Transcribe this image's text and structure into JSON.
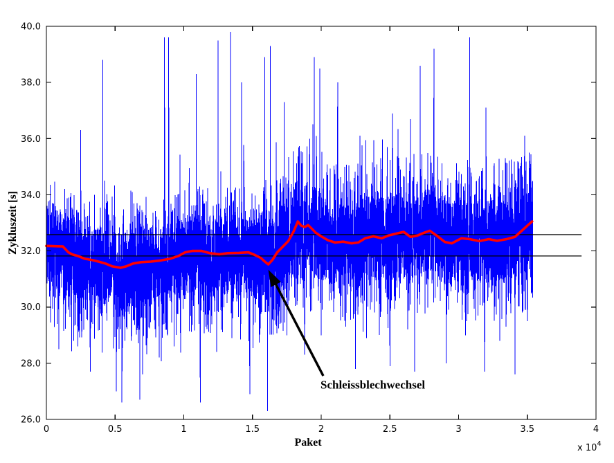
{
  "chart_data": {
    "type": "line",
    "title": "",
    "xlabel": "Paket",
    "ylabel": "Zykluszeit [s]",
    "x_exponent_label": "x 10",
    "x_exponent": "4",
    "xlim": [
      0,
      40000
    ],
    "ylim": [
      26.0,
      40.0
    ],
    "grid": false,
    "legend": "none",
    "background": "#ffffff",
    "axis_color": "#000000",
    "xticks": [
      {
        "v": 0,
        "label": "0"
      },
      {
        "v": 5000,
        "label": "0.5"
      },
      {
        "v": 10000,
        "label": "1"
      },
      {
        "v": 15000,
        "label": "1.5"
      },
      {
        "v": 20000,
        "label": "2"
      },
      {
        "v": 25000,
        "label": "2.5"
      },
      {
        "v": 30000,
        "label": "3"
      },
      {
        "v": 35000,
        "label": "3.5"
      },
      {
        "v": 40000,
        "label": "4"
      }
    ],
    "yticks": [
      {
        "v": 26,
        "label": "26.0"
      },
      {
        "v": 28,
        "label": "28.0"
      },
      {
        "v": 30,
        "label": "30.0"
      },
      {
        "v": 32,
        "label": "32.0"
      },
      {
        "v": 34,
        "label": "34.0"
      },
      {
        "v": 36,
        "label": "36.0"
      },
      {
        "v": 38,
        "label": "38.0"
      },
      {
        "v": 40,
        "label": "40.0"
      }
    ],
    "reference_lines": [
      {
        "y": 32.58,
        "x_start": 0,
        "x_end": 38950,
        "color": "#000000"
      },
      {
        "y": 31.82,
        "x_start": 0,
        "x_end": 38950,
        "color": "#000000"
      }
    ],
    "annotation": {
      "text": "Schleissblechwechsel",
      "target": {
        "x": 16150,
        "y": 31.33
      },
      "tail": {
        "x": 20150,
        "y": 27.55
      },
      "text_pos": {
        "x": 19950,
        "y": 27.1
      },
      "color": "#000000"
    },
    "series": [
      {
        "name": "cycle-time-raw",
        "color": "#0000ff",
        "style": "noisy-line",
        "x_start": 0,
        "x_end": 35400,
        "sample_step": 10,
        "seed": 1337,
        "noise_segments": [
          {
            "x_end": 15500,
            "up": 1.25,
            "dn": 1.55
          },
          {
            "x_end": 20000,
            "up": 1.6,
            "dn": 1.6
          },
          {
            "x_end": 35400,
            "up": 1.5,
            "dn": 1.55
          }
        ],
        "up_spikes": [
          [
            50,
            33.6
          ],
          [
            2500,
            36.3
          ],
          [
            4100,
            38.8
          ],
          [
            5500,
            35.6
          ],
          [
            8600,
            39.6
          ],
          [
            8900,
            39.6
          ],
          [
            10900,
            38.3
          ],
          [
            12500,
            39.5
          ],
          [
            13400,
            39.8
          ],
          [
            14200,
            38.0
          ],
          [
            15900,
            38.9
          ],
          [
            16300,
            39.3
          ],
          [
            17300,
            37.3
          ],
          [
            19500,
            38.9
          ],
          [
            19900,
            38.5
          ],
          [
            21200,
            38.0
          ],
          [
            23300,
            39.4
          ],
          [
            25200,
            36.9
          ],
          [
            26500,
            36.7
          ],
          [
            27200,
            38.6
          ],
          [
            28200,
            39.2
          ],
          [
            30800,
            39.6
          ],
          [
            32000,
            37.1
          ],
          [
            33400,
            35.3
          ],
          [
            34800,
            36.1
          ]
        ],
        "down_spikes": [
          [
            900,
            28.5
          ],
          [
            2000,
            28.8
          ],
          [
            3200,
            27.7
          ],
          [
            5100,
            27.0
          ],
          [
            5500,
            26.6
          ],
          [
            6800,
            26.7
          ],
          [
            7000,
            27.6
          ],
          [
            8200,
            28.2
          ],
          [
            9300,
            28.6
          ],
          [
            11200,
            26.6
          ],
          [
            12400,
            28.4
          ],
          [
            13500,
            28.9
          ],
          [
            14800,
            26.9
          ],
          [
            16100,
            26.3
          ],
          [
            17500,
            29.0
          ],
          [
            18800,
            28.3
          ],
          [
            20000,
            29.0
          ],
          [
            21800,
            29.3
          ],
          [
            22500,
            27.8
          ],
          [
            23300,
            28.9
          ],
          [
            25000,
            27.9
          ],
          [
            26300,
            29.2
          ],
          [
            26800,
            27.7
          ],
          [
            29100,
            28.0
          ],
          [
            30500,
            29.0
          ],
          [
            31900,
            27.7
          ],
          [
            33000,
            28.8
          ],
          [
            34100,
            27.6
          ],
          [
            35000,
            29.5
          ]
        ]
      },
      {
        "name": "moving-average",
        "color": "#ff0000",
        "style": "line",
        "points": [
          [
            0,
            32.18
          ],
          [
            1200,
            32.16
          ],
          [
            1600,
            31.95
          ],
          [
            1900,
            31.87
          ],
          [
            2300,
            31.82
          ],
          [
            2800,
            31.72
          ],
          [
            3300,
            31.68
          ],
          [
            3800,
            31.62
          ],
          [
            4300,
            31.55
          ],
          [
            4800,
            31.45
          ],
          [
            5400,
            31.4
          ],
          [
            5800,
            31.45
          ],
          [
            6300,
            31.55
          ],
          [
            6900,
            31.6
          ],
          [
            7600,
            31.62
          ],
          [
            8300,
            31.66
          ],
          [
            9000,
            31.72
          ],
          [
            9600,
            31.82
          ],
          [
            10100,
            31.95
          ],
          [
            10600,
            32.0
          ],
          [
            11300,
            32.0
          ],
          [
            11900,
            31.92
          ],
          [
            12600,
            31.88
          ],
          [
            13200,
            31.92
          ],
          [
            14000,
            31.93
          ],
          [
            14700,
            31.95
          ],
          [
            15200,
            31.85
          ],
          [
            15600,
            31.75
          ],
          [
            15900,
            31.62
          ],
          [
            16150,
            31.52
          ],
          [
            16450,
            31.68
          ],
          [
            16800,
            31.95
          ],
          [
            17200,
            32.15
          ],
          [
            17600,
            32.35
          ],
          [
            18000,
            32.7
          ],
          [
            18300,
            33.05
          ],
          [
            18550,
            32.9
          ],
          [
            18800,
            32.85
          ],
          [
            19050,
            32.92
          ],
          [
            19300,
            32.8
          ],
          [
            19600,
            32.65
          ],
          [
            20000,
            32.52
          ],
          [
            20500,
            32.38
          ],
          [
            21000,
            32.3
          ],
          [
            21600,
            32.33
          ],
          [
            22200,
            32.27
          ],
          [
            22700,
            32.3
          ],
          [
            23200,
            32.45
          ],
          [
            23800,
            32.52
          ],
          [
            24400,
            32.45
          ],
          [
            24900,
            32.55
          ],
          [
            25500,
            32.62
          ],
          [
            26000,
            32.68
          ],
          [
            26500,
            32.5
          ],
          [
            27000,
            32.55
          ],
          [
            27500,
            32.65
          ],
          [
            27900,
            32.72
          ],
          [
            28400,
            32.55
          ],
          [
            29000,
            32.32
          ],
          [
            29500,
            32.27
          ],
          [
            30200,
            32.45
          ],
          [
            30800,
            32.42
          ],
          [
            31500,
            32.35
          ],
          [
            32200,
            32.42
          ],
          [
            32800,
            32.36
          ],
          [
            33500,
            32.42
          ],
          [
            34100,
            32.5
          ],
          [
            34600,
            32.72
          ],
          [
            35000,
            32.9
          ],
          [
            35350,
            33.05
          ]
        ]
      }
    ]
  }
}
